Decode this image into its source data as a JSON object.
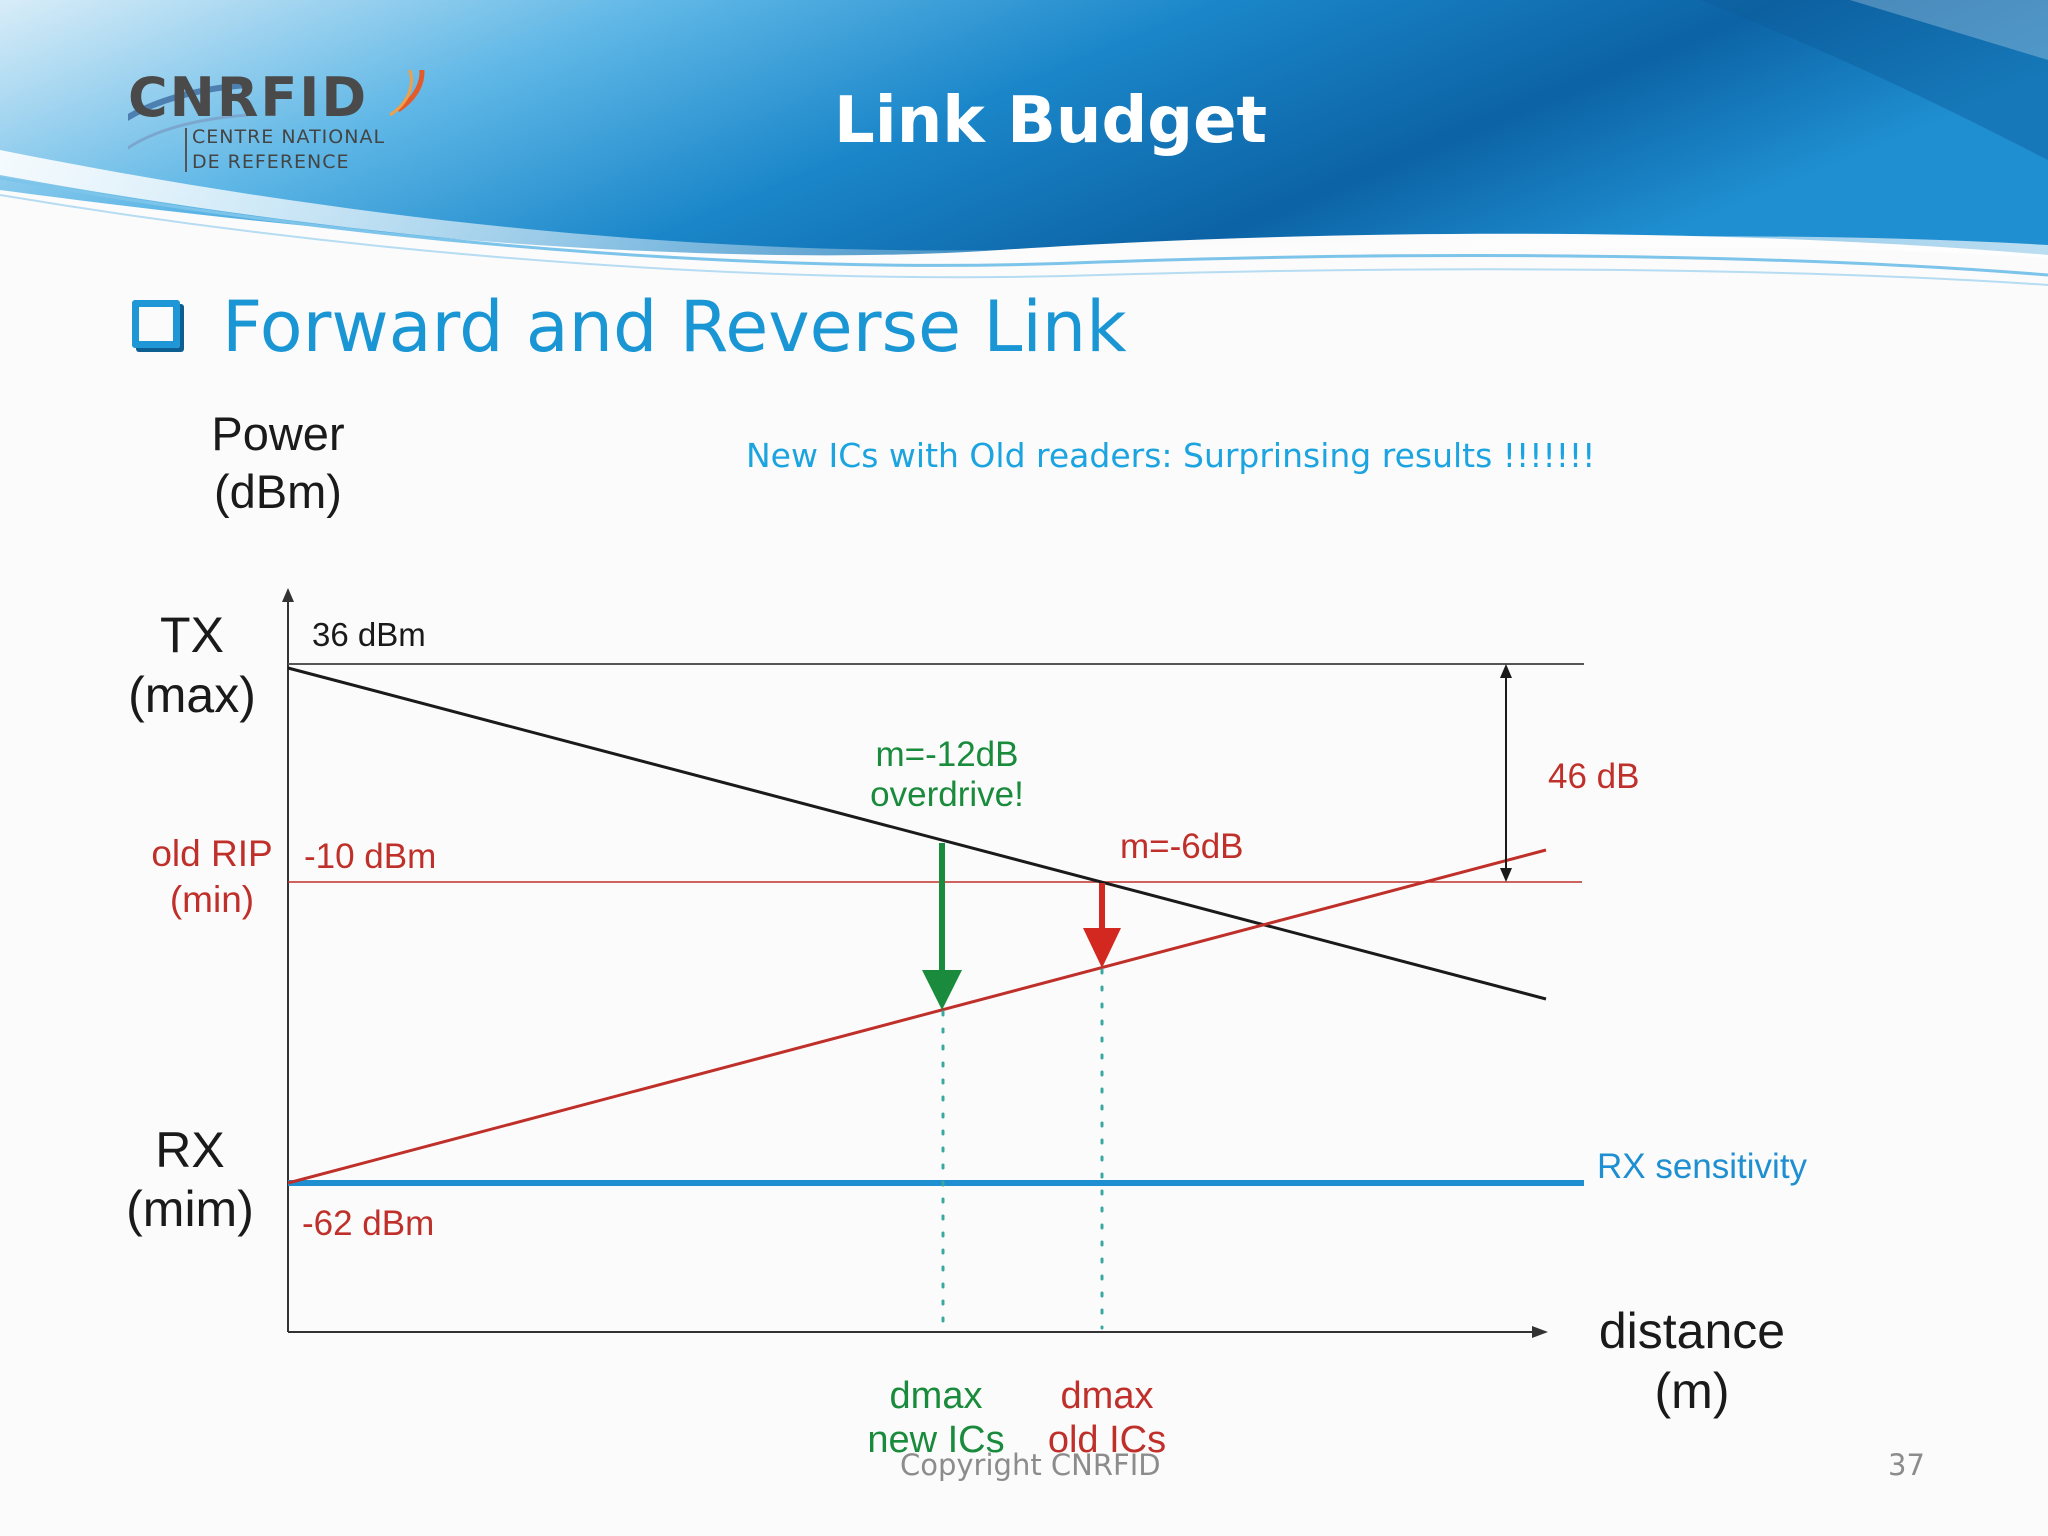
{
  "header": {
    "title": "Link Budget",
    "logo": {
      "brand": "CNRFID",
      "line1": "CENTRE NATIONAL",
      "line2": "DE REFERENCE"
    }
  },
  "section": {
    "heading": "Forward and Reverse Link"
  },
  "diagram": {
    "y_axis_label_1": "Power",
    "y_axis_label_2": "(dBm)",
    "note": "New ICs with Old readers: Surprinsing results !!!!!!!",
    "tx_label_1": "TX",
    "tx_label_2": "(max)",
    "tx_value": "36 dBm",
    "rip_label_1": "old RIP",
    "rip_label_2": "(min)",
    "rip_value": "-10 dBm",
    "rx_label_1": "RX",
    "rx_label_2": "(mim)",
    "rx_value": "-62 dBm",
    "span_label": "46 dB",
    "margin_new_1": "m=-12dB",
    "margin_new_2": "overdrive!",
    "margin_old": "m=-6dB",
    "rx_sensitivity": "RX sensitivity",
    "x_axis_label_1": "distance",
    "x_axis_label_2": "(m)",
    "dmax_new_1": "dmax",
    "dmax_new_2": "new ICs",
    "dmax_old_1": "dmax",
    "dmax_old_2": "old ICs",
    "colors": {
      "black": "#1a1a1a",
      "red": "#c0302a",
      "green": "#1a8b3c",
      "blue": "#1e8fd0",
      "teal_dots": "#3aa8a0"
    }
  },
  "footer": {
    "copyright": "Copyright CNRFID",
    "page_number": "37"
  }
}
